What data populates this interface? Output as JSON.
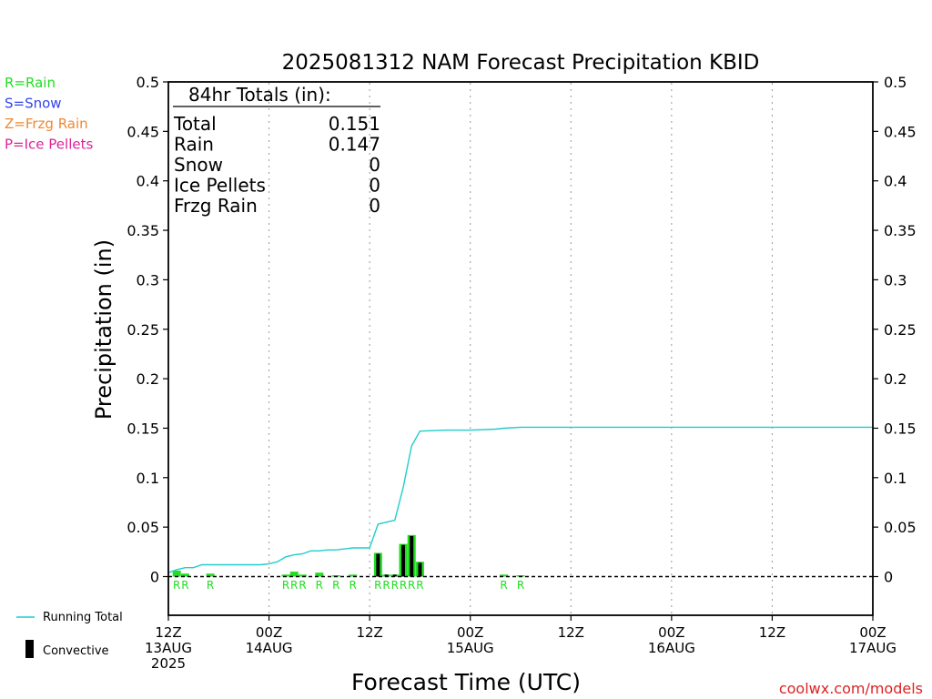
{
  "chart_data": {
    "type": "bar",
    "title": "2025081312 NAM Forecast Precipitation KBID",
    "xlabel": "Forecast Time (UTC)",
    "ylabel": "Precipitation (in)",
    "ylim": [
      0,
      0.5
    ],
    "xlim_hours": [
      0,
      84
    ],
    "grid": "vertical dotted lines every 12 hours",
    "yticks": [
      "0",
      "0.05",
      "0.1",
      "0.15",
      "0.2",
      "0.25",
      "0.3",
      "0.35",
      "0.4",
      "0.45",
      "0.5"
    ],
    "xticks": [
      {
        "hour": 0,
        "lines": [
          "12Z",
          "13AUG",
          "2025"
        ]
      },
      {
        "hour": 12,
        "lines": [
          "00Z",
          "14AUG"
        ]
      },
      {
        "hour": 24,
        "lines": [
          "12Z"
        ]
      },
      {
        "hour": 36,
        "lines": [
          "00Z",
          "15AUG"
        ]
      },
      {
        "hour": 48,
        "lines": [
          "12Z"
        ]
      },
      {
        "hour": 60,
        "lines": [
          "00Z",
          "16AUG"
        ]
      },
      {
        "hour": 72,
        "lines": [
          "12Z"
        ]
      },
      {
        "hour": 84,
        "lines": [
          "00Z",
          "17AUG"
        ]
      }
    ],
    "precip_type_legend": [
      {
        "label": "R=Rain",
        "color": "#22dd22"
      },
      {
        "label": "S=Snow",
        "color": "#3344ee"
      },
      {
        "label": "Z=Frzg Rain",
        "color": "#ee8833"
      },
      {
        "label": "P=Ice Pellets",
        "color": "#dd2299"
      }
    ],
    "series_legend": [
      {
        "label": "Running Total",
        "color": "#22cccc",
        "kind": "line"
      },
      {
        "label": "Convective",
        "color": "#000000",
        "kind": "bar"
      }
    ],
    "totals": {
      "heading": "84hr Totals (in):",
      "rows": [
        {
          "label": "Total",
          "value": "0.151"
        },
        {
          "label": "Rain",
          "value": "0.147"
        },
        {
          "label": "Snow",
          "value": "0"
        },
        {
          "label": "Ice Pellets",
          "value": "0"
        },
        {
          "label": "Frzg Rain",
          "value": "0"
        }
      ]
    },
    "bars": [
      {
        "hour": 1,
        "total": 0.006,
        "convective": 0.0,
        "type": "R"
      },
      {
        "hour": 2,
        "total": 0.003,
        "convective": 0.0,
        "type": "R"
      },
      {
        "hour": 5,
        "total": 0.003,
        "convective": 0.0,
        "type": "R"
      },
      {
        "hour": 14,
        "total": 0.002,
        "convective": 0.0,
        "type": "R"
      },
      {
        "hour": 15,
        "total": 0.005,
        "convective": 0.0,
        "type": "R"
      },
      {
        "hour": 16,
        "total": 0.002,
        "convective": 0.0,
        "type": "R"
      },
      {
        "hour": 18,
        "total": 0.004,
        "convective": 0.0,
        "type": "R"
      },
      {
        "hour": 20,
        "total": 0.001,
        "convective": 0.0,
        "type": "R"
      },
      {
        "hour": 22,
        "total": 0.002,
        "convective": 0.0,
        "type": "R"
      },
      {
        "hour": 25,
        "total": 0.024,
        "convective": 0.023,
        "type": "R"
      },
      {
        "hour": 26,
        "total": 0.002,
        "convective": 0.002,
        "type": "R"
      },
      {
        "hour": 27,
        "total": 0.002,
        "convective": 0.002,
        "type": "R"
      },
      {
        "hour": 28,
        "total": 0.033,
        "convective": 0.032,
        "type": "R"
      },
      {
        "hour": 29,
        "total": 0.042,
        "convective": 0.041,
        "type": "R"
      },
      {
        "hour": 30,
        "total": 0.015,
        "convective": 0.014,
        "type": "R"
      },
      {
        "hour": 40,
        "total": 0.002,
        "convective": 0.0,
        "type": "R"
      },
      {
        "hour": 42,
        "total": 0.001,
        "convective": 0.0,
        "type": "R"
      }
    ],
    "running_total": [
      [
        0,
        0.004
      ],
      [
        1,
        0.007
      ],
      [
        2,
        0.009
      ],
      [
        3,
        0.009
      ],
      [
        4,
        0.012
      ],
      [
        5,
        0.012
      ],
      [
        6,
        0.012
      ],
      [
        7,
        0.012
      ],
      [
        8,
        0.012
      ],
      [
        9,
        0.012
      ],
      [
        10,
        0.012
      ],
      [
        11,
        0.012
      ],
      [
        12,
        0.013
      ],
      [
        13,
        0.015
      ],
      [
        14,
        0.02
      ],
      [
        15,
        0.022
      ],
      [
        16,
        0.023
      ],
      [
        17,
        0.026
      ],
      [
        18,
        0.026
      ],
      [
        19,
        0.027
      ],
      [
        20,
        0.027
      ],
      [
        21,
        0.028
      ],
      [
        22,
        0.029
      ],
      [
        23,
        0.029
      ],
      [
        24,
        0.029
      ],
      [
        25,
        0.053
      ],
      [
        26,
        0.055
      ],
      [
        27,
        0.057
      ],
      [
        28,
        0.09
      ],
      [
        29,
        0.132
      ],
      [
        30,
        0.147
      ],
      [
        33,
        0.148
      ],
      [
        36,
        0.148
      ],
      [
        39,
        0.149
      ],
      [
        40,
        0.15
      ],
      [
        42,
        0.151
      ],
      [
        84,
        0.151
      ]
    ]
  },
  "footer": {
    "running_total_label": "Running Total",
    "convective_label": "Convective",
    "credit": "coolwx.com/models"
  }
}
